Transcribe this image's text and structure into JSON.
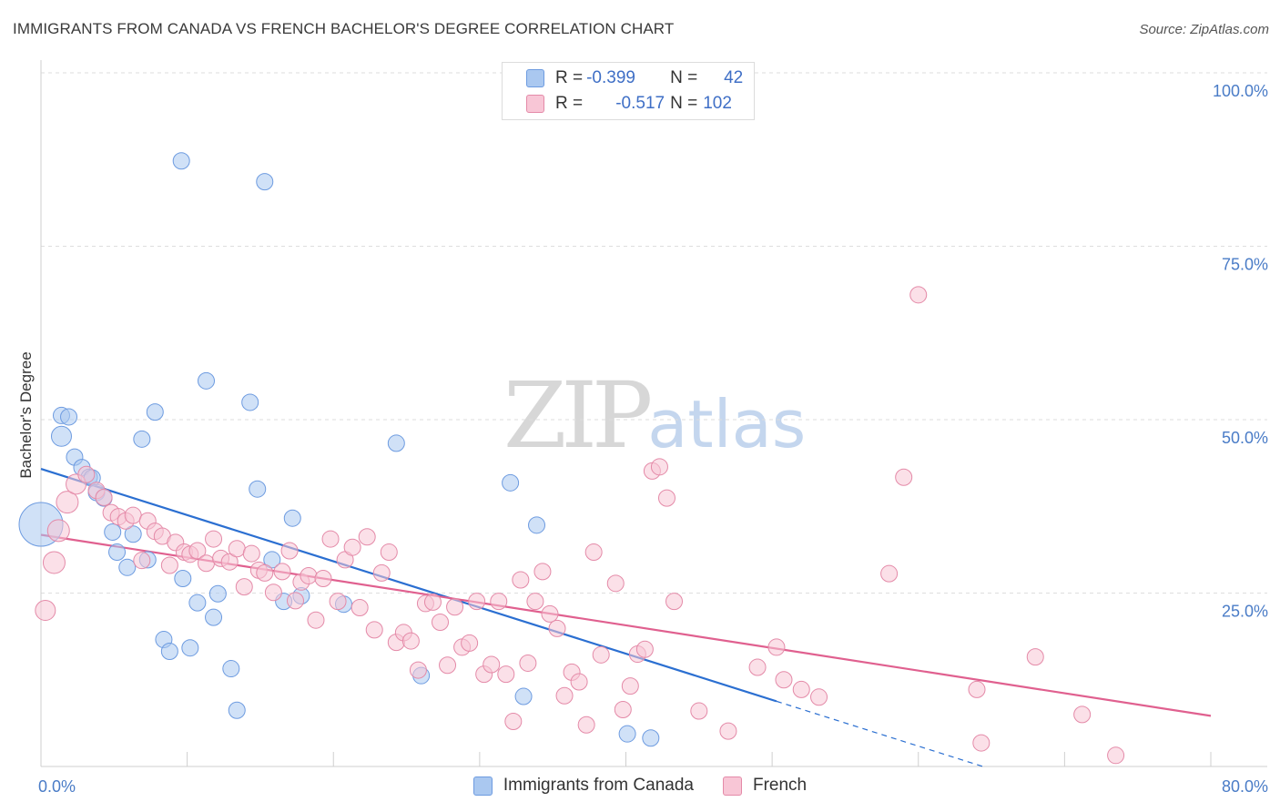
{
  "title": "IMMIGRANTS FROM CANADA VS FRENCH BACHELOR'S DEGREE CORRELATION CHART",
  "source": "Source: ZipAtlas.com",
  "watermark": {
    "zip": "ZIP",
    "atlas": "atlas"
  },
  "legend": {
    "rows": [
      {
        "r_label": "R = ",
        "r_value": "-0.399",
        "n_label": "N = ",
        "n_value": "42",
        "color": "#aac8f0",
        "border": "#6d9be0"
      },
      {
        "r_label": "R = ",
        "r_value": "-0.517",
        "n_label": "N = ",
        "n_value": "102",
        "color": "#f8c6d6",
        "border": "#e48aa8"
      }
    ]
  },
  "bottom_legend": [
    {
      "label": "Immigrants from Canada",
      "color": "#aac8f0",
      "border": "#6d9be0"
    },
    {
      "label": "French",
      "color": "#f8c6d6",
      "border": "#e48aa8"
    }
  ],
  "chart_data": {
    "type": "scatter",
    "title": "IMMIGRANTS FROM CANADA VS FRENCH BACHELOR'S DEGREE CORRELATION CHART",
    "xlabel": "",
    "ylabel": "Bachelor's Degree",
    "xlim": [
      0,
      80
    ],
    "ylim": [
      0,
      100
    ],
    "x_tick_labels": [
      "0.0%",
      "80.0%"
    ],
    "y_ticks": [
      25,
      50,
      75,
      100
    ],
    "y_tick_labels": [
      "25.0%",
      "50.0%",
      "75.0%",
      "100.0%"
    ],
    "grid": true,
    "legend_position": "top-center",
    "series": [
      {
        "name": "Immigrants from Canada",
        "color": "#6d9be0",
        "fill": "#aac8f0",
        "trend": {
          "x0": 0,
          "y0": 42.9,
          "x1": 50.3,
          "y1": 9.4,
          "dashed_to_x": 80,
          "line_color": "#2b6fd1"
        },
        "points": [
          [
            0.0,
            34.9,
            24
          ],
          [
            1.4,
            47.6,
            11
          ],
          [
            1.4,
            50.6,
            9
          ],
          [
            1.9,
            50.4,
            9
          ],
          [
            2.3,
            44.6,
            9
          ],
          [
            2.8,
            43.1,
            9
          ],
          [
            3.3,
            41.7,
            9
          ],
          [
            3.5,
            41.6,
            9
          ],
          [
            3.8,
            39.5,
            9
          ],
          [
            4.3,
            38.7,
            9
          ],
          [
            4.9,
            33.8,
            9
          ],
          [
            5.2,
            30.9,
            9
          ],
          [
            5.9,
            28.7,
            9
          ],
          [
            6.3,
            33.5,
            9
          ],
          [
            6.9,
            47.2,
            9
          ],
          [
            7.3,
            29.8,
            9
          ],
          [
            7.8,
            51.1,
            9
          ],
          [
            8.4,
            18.3,
            9
          ],
          [
            8.8,
            16.6,
            9
          ],
          [
            9.6,
            87.3,
            9
          ],
          [
            9.7,
            27.1,
            9
          ],
          [
            10.2,
            17.1,
            9
          ],
          [
            10.7,
            23.6,
            9
          ],
          [
            11.3,
            55.6,
            9
          ],
          [
            11.8,
            21.5,
            9
          ],
          [
            12.1,
            24.9,
            9
          ],
          [
            13.0,
            14.1,
            9
          ],
          [
            13.4,
            8.1,
            9
          ],
          [
            14.3,
            52.5,
            9
          ],
          [
            14.8,
            40.0,
            9
          ],
          [
            15.3,
            84.3,
            9
          ],
          [
            15.8,
            29.8,
            9
          ],
          [
            16.6,
            23.8,
            9
          ],
          [
            17.2,
            35.8,
            9
          ],
          [
            17.8,
            24.6,
            9
          ],
          [
            20.7,
            23.4,
            9
          ],
          [
            24.3,
            46.6,
            9
          ],
          [
            26.0,
            13.1,
            9
          ],
          [
            32.1,
            40.9,
            9
          ],
          [
            33.0,
            10.1,
            9
          ],
          [
            33.9,
            34.8,
            9
          ],
          [
            40.1,
            4.7,
            9
          ],
          [
            41.7,
            4.1,
            9
          ]
        ]
      },
      {
        "name": "French",
        "color": "#e48aa8",
        "fill": "#f8c6d6",
        "trend": {
          "x0": 0,
          "y0": 33.4,
          "x1": 80,
          "y1": 7.3,
          "line_color": "#e0608f"
        },
        "points": [
          [
            0.3,
            22.5,
            11
          ],
          [
            0.9,
            29.4,
            12
          ],
          [
            1.2,
            34.0,
            12
          ],
          [
            1.8,
            38.1,
            12
          ],
          [
            2.4,
            40.7,
            11
          ],
          [
            3.1,
            42.1,
            9
          ],
          [
            3.8,
            39.8,
            9
          ],
          [
            4.3,
            38.8,
            9
          ],
          [
            4.8,
            36.6,
            9
          ],
          [
            5.3,
            36.0,
            9
          ],
          [
            5.8,
            35.4,
            9
          ],
          [
            6.3,
            36.2,
            9
          ],
          [
            6.9,
            29.7,
            9
          ],
          [
            7.3,
            35.4,
            9
          ],
          [
            7.8,
            33.9,
            9
          ],
          [
            8.3,
            33.2,
            9
          ],
          [
            8.8,
            29.0,
            9
          ],
          [
            9.2,
            32.3,
            9
          ],
          [
            9.8,
            30.9,
            9
          ],
          [
            10.2,
            30.6,
            9
          ],
          [
            10.7,
            31.1,
            9
          ],
          [
            11.3,
            29.3,
            9
          ],
          [
            11.8,
            32.8,
            9
          ],
          [
            12.3,
            30.0,
            9
          ],
          [
            12.9,
            29.5,
            9
          ],
          [
            13.4,
            31.4,
            9
          ],
          [
            13.9,
            25.9,
            9
          ],
          [
            14.4,
            30.7,
            9
          ],
          [
            14.9,
            28.3,
            9
          ],
          [
            15.3,
            27.9,
            9
          ],
          [
            15.9,
            25.1,
            9
          ],
          [
            16.5,
            28.1,
            9
          ],
          [
            17.0,
            31.1,
            9
          ],
          [
            17.4,
            23.9,
            9
          ],
          [
            17.8,
            26.6,
            9
          ],
          [
            18.3,
            27.5,
            9
          ],
          [
            18.8,
            21.1,
            9
          ],
          [
            19.3,
            27.1,
            9
          ],
          [
            19.8,
            32.8,
            9
          ],
          [
            20.3,
            23.8,
            9
          ],
          [
            20.8,
            29.8,
            9
          ],
          [
            21.3,
            31.6,
            9
          ],
          [
            21.8,
            22.9,
            9
          ],
          [
            22.3,
            33.1,
            9
          ],
          [
            22.8,
            19.7,
            9
          ],
          [
            23.3,
            27.9,
            9
          ],
          [
            23.8,
            30.9,
            9
          ],
          [
            24.3,
            17.9,
            9
          ],
          [
            24.8,
            19.3,
            9
          ],
          [
            25.3,
            18.1,
            9
          ],
          [
            25.8,
            13.9,
            9
          ],
          [
            26.3,
            23.5,
            9
          ],
          [
            26.8,
            23.7,
            9
          ],
          [
            27.3,
            20.8,
            9
          ],
          [
            27.8,
            14.6,
            9
          ],
          [
            28.3,
            23.0,
            9
          ],
          [
            28.8,
            17.2,
            9
          ],
          [
            29.3,
            17.8,
            9
          ],
          [
            29.8,
            23.8,
            9
          ],
          [
            30.3,
            13.3,
            9
          ],
          [
            30.8,
            14.7,
            9
          ],
          [
            31.3,
            23.8,
            9
          ],
          [
            31.8,
            13.3,
            9
          ],
          [
            32.3,
            6.5,
            9
          ],
          [
            32.8,
            26.9,
            9
          ],
          [
            33.3,
            14.9,
            9
          ],
          [
            33.8,
            23.8,
            9
          ],
          [
            34.3,
            28.1,
            9
          ],
          [
            34.8,
            22.0,
            9
          ],
          [
            35.3,
            19.9,
            9
          ],
          [
            35.8,
            10.2,
            9
          ],
          [
            36.3,
            13.6,
            9
          ],
          [
            36.8,
            12.2,
            9
          ],
          [
            37.3,
            6.0,
            9
          ],
          [
            37.8,
            30.9,
            9
          ],
          [
            38.3,
            16.1,
            9
          ],
          [
            39.3,
            26.4,
            9
          ],
          [
            39.8,
            8.2,
            9
          ],
          [
            40.3,
            11.6,
            9
          ],
          [
            40.8,
            16.2,
            9
          ],
          [
            41.3,
            16.9,
            9
          ],
          [
            41.8,
            42.6,
            9
          ],
          [
            42.3,
            43.2,
            9
          ],
          [
            42.8,
            38.7,
            9
          ],
          [
            43.3,
            23.8,
            9
          ],
          [
            45.0,
            8.0,
            9
          ],
          [
            47.0,
            5.1,
            9
          ],
          [
            49.0,
            14.3,
            9
          ],
          [
            50.3,
            17.2,
            9
          ],
          [
            50.8,
            12.5,
            9
          ],
          [
            52.0,
            11.1,
            9
          ],
          [
            53.2,
            10.0,
            9
          ],
          [
            58.0,
            27.8,
            9
          ],
          [
            59.0,
            41.7,
            9
          ],
          [
            60.0,
            68.0,
            9
          ],
          [
            64.0,
            11.1,
            9
          ],
          [
            64.3,
            3.4,
            9
          ],
          [
            68.0,
            15.8,
            9
          ],
          [
            71.2,
            7.5,
            9
          ],
          [
            73.5,
            1.6,
            9
          ]
        ]
      }
    ]
  }
}
